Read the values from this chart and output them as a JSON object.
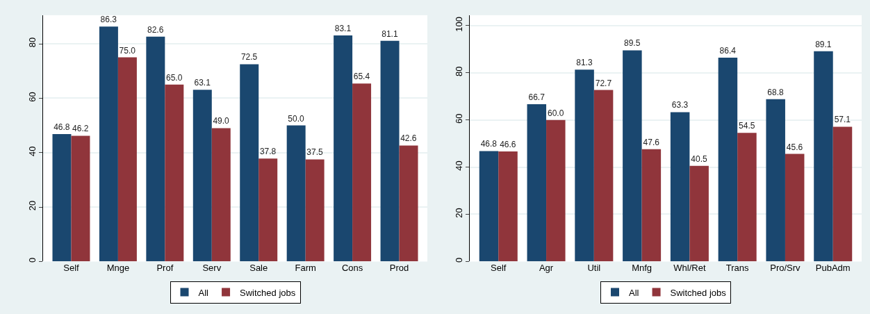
{
  "chart_data": [
    {
      "type": "bar",
      "categories": [
        "Self",
        "Mnge",
        "Prof",
        "Serv",
        "Sale",
        "Farm",
        "Cons",
        "Prod"
      ],
      "ylim": [
        0,
        90.5
      ],
      "yticks": [
        0,
        20,
        40,
        60,
        80
      ],
      "grid": "y",
      "legend": "bottom",
      "series": [
        {
          "name": "All",
          "color": "#1a476f",
          "values": [
            46.8,
            86.3,
            82.6,
            63.1,
            72.5,
            50.0,
            83.1,
            81.1
          ],
          "value_labels": [
            "46.8",
            "86.3",
            "82.6",
            "63.1",
            "72.5",
            "50.0",
            "83.1",
            "81.1"
          ]
        },
        {
          "name": "Switched jobs",
          "color": "#90353b",
          "values": [
            46.2,
            75.0,
            65.0,
            49.0,
            37.8,
            37.5,
            65.4,
            42.6
          ],
          "value_labels": [
            "46.2",
            "75.0",
            "65.0",
            "49.0",
            "37.8",
            "37.5",
            "65.4",
            "42.6"
          ]
        }
      ]
    },
    {
      "type": "bar",
      "categories": [
        "Self",
        "Agr",
        "Util",
        "Mnfg",
        "Whl/Ret",
        "Trans",
        "Pro/Srv",
        "PubAdm"
      ],
      "ylim": [
        0,
        104.4
      ],
      "yticks": [
        0,
        20,
        40,
        60,
        80,
        100
      ],
      "grid": "y",
      "legend": "bottom",
      "series": [
        {
          "name": "All",
          "color": "#1a476f",
          "values": [
            46.8,
            66.7,
            81.3,
            89.5,
            63.3,
            86.4,
            68.8,
            89.1
          ],
          "value_labels": [
            "46.8",
            "66.7",
            "81.3",
            "89.5",
            "63.3",
            "86.4",
            "68.8",
            "89.1"
          ]
        },
        {
          "name": "Switched jobs",
          "color": "#90353b",
          "values": [
            46.6,
            60.0,
            72.7,
            47.6,
            40.5,
            54.5,
            45.6,
            57.1
          ],
          "value_labels": [
            "46.6",
            "60.0",
            "72.7",
            "47.6",
            "40.5",
            "54.5",
            "45.6",
            "57.1"
          ]
        }
      ]
    }
  ]
}
